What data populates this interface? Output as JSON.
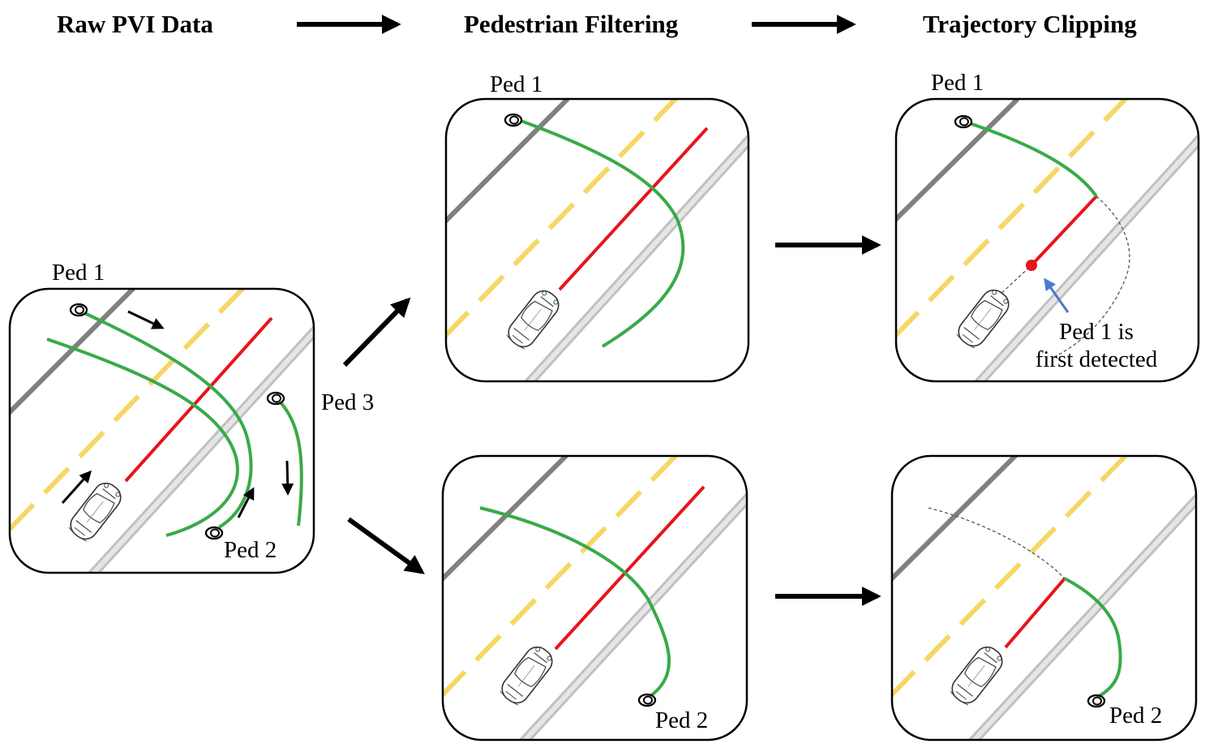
{
  "stages": {
    "raw": "Raw PVI Data",
    "filtering": "Pedestrian Filtering",
    "clipping": "Trajectory Clipping"
  },
  "raw_panel": {
    "ped1": "Ped 1",
    "ped2": "Ped 2",
    "ped3": "Ped 3"
  },
  "filter_top": {
    "ped1": "Ped 1"
  },
  "filter_bottom": {
    "ped2": "Ped 2"
  },
  "clip_top": {
    "ped1": "Ped 1",
    "note_line1": "Ped 1 is",
    "note_line2": "first detected"
  },
  "clip_bottom": {
    "ped2": "Ped 2"
  },
  "colors": {
    "vehicle_path": "#e8141c",
    "pedestrian_path": "#3aaa48",
    "lane_dash": "#f6d765",
    "road_edge": "#808080",
    "detect_marker": "#e8141c",
    "annotation_arrow": "#4a7ac9"
  },
  "icons": [
    "pedestrian-icon",
    "car-icon",
    "flow-arrow-icon",
    "direction-arrow-icon"
  ]
}
